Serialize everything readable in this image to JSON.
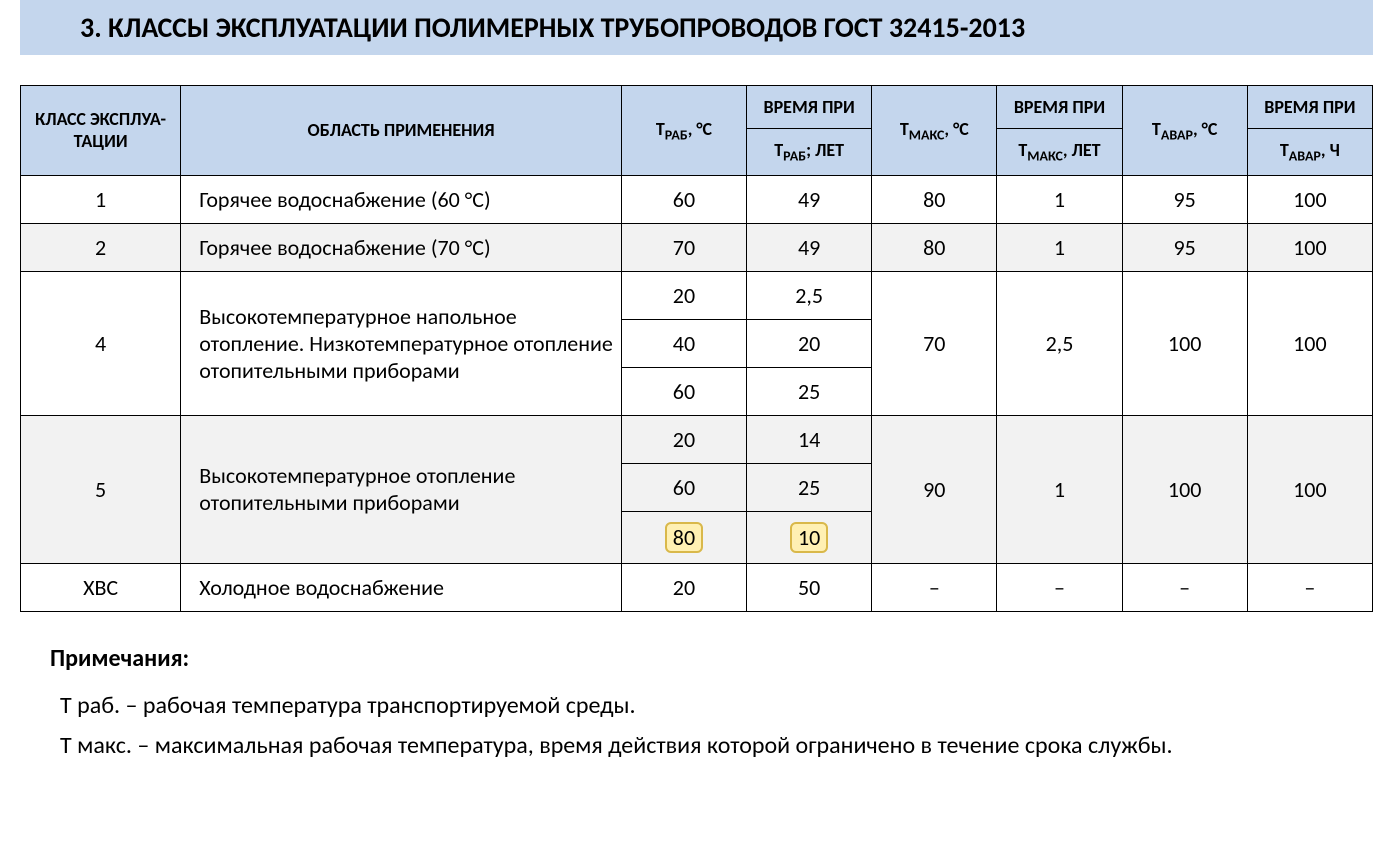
{
  "style": {
    "title_bg": "#c4d6ed",
    "header_bg": "#c4d6ed",
    "alt_row_bg": "#f2f2f2",
    "highlight_bg": "#fff0b3",
    "highlight_border": "#d9b84a",
    "border_color": "#000000",
    "page_bg": "#ffffff",
    "title_fontsize": 28,
    "header_fontsize": 18,
    "cell_fontsize": 22,
    "notes_fontsize": 24,
    "font_family": "Calibri"
  },
  "title": "3. КЛАССЫ ЭКСПЛУАТАЦИИ ПОЛИМЕРНЫХ ТРУБОПРОВОДОВ ГОСТ 32415-2013",
  "headers": {
    "class": "КЛАСС ЭКСПЛУА-ТАЦИИ",
    "app": "ОБЛАСТЬ ПРИМЕНЕНИЯ",
    "trab": "ТРАБ, °C",
    "time_at": "ВРЕМЯ ПРИ",
    "trab_years": "ТРАБ; ЛЕТ",
    "tmax": "ТМАКС, °C",
    "tmax_years": "ТМАКС, ЛЕТ",
    "tavar": "ТАВАР, °C",
    "tavar_hours": "ТАВАР, Ч"
  },
  "rows": {
    "r1": {
      "class": "1",
      "app": "Горячее водоснабжение (60 °C)",
      "trab": "60",
      "trab_years": "49",
      "tmax": "80",
      "tmax_years": "1",
      "tavar": "95",
      "tavar_hours": "100"
    },
    "r2": {
      "class": "2",
      "app": "Горячее водоснабжение (70 °C)",
      "trab": "70",
      "trab_years": "49",
      "tmax": "80",
      "tmax_years": "1",
      "tavar": "95",
      "tavar_hours": "100"
    },
    "r4": {
      "class": "4",
      "app": "Высокотемпературное напольное отопление. Низкотемпературное отопление отопительными приборами",
      "trab": [
        "20",
        "40",
        "60"
      ],
      "trab_years": [
        "2,5",
        "20",
        "25"
      ],
      "tmax": "70",
      "tmax_years": "2,5",
      "tavar": "100",
      "tavar_hours": "100"
    },
    "r5": {
      "class": "5",
      "app": "Высокотемпературное отопление отопительными приборами",
      "trab": [
        "20",
        "60",
        "80"
      ],
      "trab_years": [
        "14",
        "25",
        "10"
      ],
      "tmax": "90",
      "tmax_years": "1",
      "tavar": "100",
      "tavar_hours": "100",
      "highlight_row": 2
    },
    "r6": {
      "class": "ХВС",
      "app": "Холодное водоснабжение",
      "trab": "20",
      "trab_years": "50",
      "tmax": "–",
      "tmax_years": "–",
      "tavar": "–",
      "tavar_hours": "–"
    }
  },
  "notes": {
    "title": "Примечания:",
    "p1": "Т раб. –  рабочая температура транспортируемой среды.",
    "p2": "Т макс. – максимальная рабочая температура, время действия которой ограничено в течение срока службы."
  },
  "sub": {
    "rab": "РАБ",
    "max": "МАКС",
    "avar": "АВАР",
    "deg": ", °C",
    "years_semi": "; ЛЕТ",
    "years": ", ЛЕТ",
    "hours": ", Ч",
    "time_at": "ВРЕМЯ ПРИ",
    "T": "Т"
  }
}
